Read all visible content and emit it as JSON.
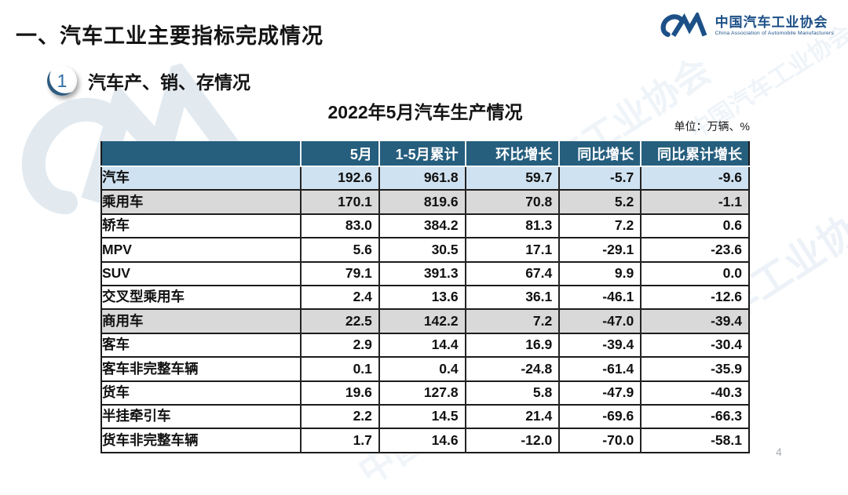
{
  "page": {
    "section_title": "一、汽车工业主要指标完成情况",
    "badge_number": "1",
    "subsection_title": "汽车产、销、存情况",
    "page_number": "4"
  },
  "logo": {
    "name_cn": "中国汽车工业协会",
    "name_en": "China Association of Automobile Manufacturers",
    "brand_color": "#1d5087"
  },
  "watermark_text": "中国汽车工业协会",
  "chart_data": {
    "type": "table",
    "title": "2022年5月汽车生产情况",
    "unit": "单位：万辆、%",
    "columns": [
      "",
      "5月",
      "1-5月累计",
      "环比增长",
      "同比增长",
      "同比累计增长"
    ],
    "column_widths_pct": [
      30.8,
      12.1,
      13.3,
      14.5,
      12.6,
      16.7
    ],
    "rows": [
      {
        "label": "汽车",
        "indent": 0,
        "style": "blue",
        "values": [
          "192.6",
          "961.8",
          "59.7",
          "-5.7",
          "-9.6"
        ]
      },
      {
        "label": "乘用车",
        "indent": 1,
        "style": "gray",
        "values": [
          "170.1",
          "819.6",
          "70.8",
          "5.2",
          "-1.1"
        ]
      },
      {
        "label": "轿车",
        "indent": 2,
        "style": "white",
        "values": [
          "83.0",
          "384.2",
          "81.3",
          "7.2",
          "0.6"
        ]
      },
      {
        "label": "MPV",
        "indent": 2,
        "style": "white",
        "values": [
          "5.6",
          "30.5",
          "17.1",
          "-29.1",
          "-23.6"
        ]
      },
      {
        "label": "SUV",
        "indent": 2,
        "style": "white",
        "values": [
          "79.1",
          "391.3",
          "67.4",
          "9.9",
          "0.0"
        ]
      },
      {
        "label": "交叉型乘用车",
        "indent": 2,
        "style": "white",
        "values": [
          "2.4",
          "13.6",
          "36.1",
          "-46.1",
          "-12.6"
        ]
      },
      {
        "label": "商用车",
        "indent": 1,
        "style": "gray",
        "values": [
          "22.5",
          "142.2",
          "7.2",
          "-47.0",
          "-39.4"
        ]
      },
      {
        "label": "客车",
        "indent": 2,
        "style": "white",
        "values": [
          "2.9",
          "14.4",
          "16.9",
          "-39.4",
          "-30.4"
        ]
      },
      {
        "label": "客车非完整车辆",
        "indent": 3,
        "style": "white",
        "values": [
          "0.1",
          "0.4",
          "-24.8",
          "-61.4",
          "-35.9"
        ]
      },
      {
        "label": "货车",
        "indent": 2,
        "style": "white",
        "values": [
          "19.6",
          "127.8",
          "5.8",
          "-47.9",
          "-40.3"
        ]
      },
      {
        "label": "半挂牵引车",
        "indent": 3,
        "style": "white",
        "values": [
          "2.2",
          "14.5",
          "21.4",
          "-69.6",
          "-66.3"
        ]
      },
      {
        "label": "货车非完整车辆",
        "indent": 3,
        "style": "white",
        "values": [
          "1.7",
          "14.6",
          "-12.0",
          "-70.0",
          "-58.1"
        ]
      }
    ],
    "colors": {
      "header_bg": "#265e7e",
      "header_text": "#ffffff",
      "row_blue": "#cfe2f1",
      "row_gray": "#d9d9d9",
      "border": "#1a1a1a"
    }
  }
}
